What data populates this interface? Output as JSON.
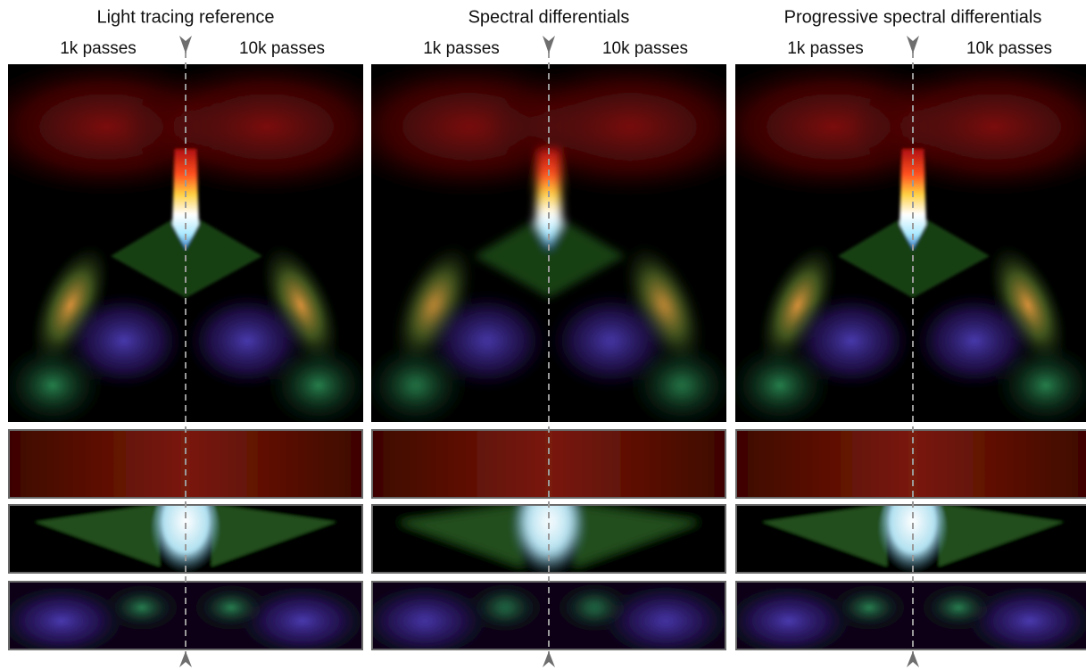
{
  "panels": [
    {
      "title": "Light tracing reference",
      "left_label": "1k passes",
      "right_label": "10k passes"
    },
    {
      "title": "Spectral differentials",
      "left_label": "1k passes",
      "right_label": "10k passes"
    },
    {
      "title": "Progressive spectral differentials",
      "left_label": "1k passes",
      "right_label": "10k passes"
    }
  ]
}
